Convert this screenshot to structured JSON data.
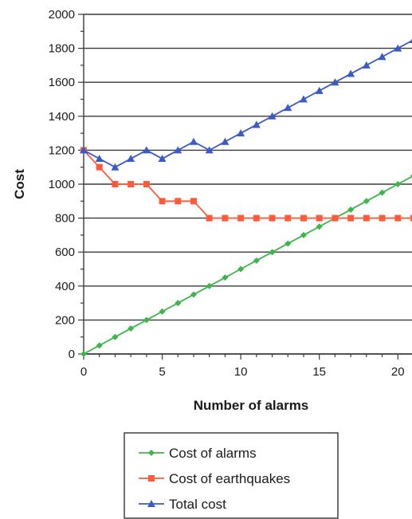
{
  "chart_data": {
    "type": "line",
    "xlabel": "Number of alarms",
    "ylabel": "Cost",
    "xlim": [
      0,
      20.9
    ],
    "ylim": [
      0,
      2000
    ],
    "x_ticks": [
      0,
      5,
      10,
      15,
      20
    ],
    "y_ticks": [
      0,
      200,
      400,
      600,
      800,
      1000,
      1200,
      1400,
      1600,
      1800,
      2000
    ],
    "grid": "horizontal",
    "legend_position": "bottom",
    "x": [
      0,
      1,
      2,
      3,
      4,
      5,
      6,
      7,
      8,
      9,
      10,
      11,
      12,
      13,
      14,
      15,
      16,
      17,
      18,
      19,
      20,
      21
    ],
    "series": [
      {
        "name": "Cost of alarms",
        "color": "#3cb54a",
        "marker": "diamond",
        "values": [
          0,
          50,
          100,
          150,
          200,
          250,
          300,
          350,
          400,
          450,
          500,
          550,
          600,
          650,
          700,
          750,
          800,
          850,
          900,
          950,
          1000,
          1050
        ]
      },
      {
        "name": "Cost of earthquakes",
        "color": "#ff5a3c",
        "marker": "square",
        "values": [
          1200,
          1100,
          1000,
          1000,
          1000,
          900,
          900,
          900,
          800,
          800,
          800,
          800,
          800,
          800,
          800,
          800,
          800,
          800,
          800,
          800,
          800,
          800
        ]
      },
      {
        "name": "Total cost",
        "color": "#3a5bc7",
        "marker": "triangle",
        "values": [
          1200,
          1150,
          1100,
          1150,
          1200,
          1150,
          1200,
          1250,
          1200,
          1250,
          1300,
          1350,
          1400,
          1450,
          1500,
          1550,
          1600,
          1650,
          1700,
          1750,
          1800,
          1850
        ]
      }
    ]
  }
}
